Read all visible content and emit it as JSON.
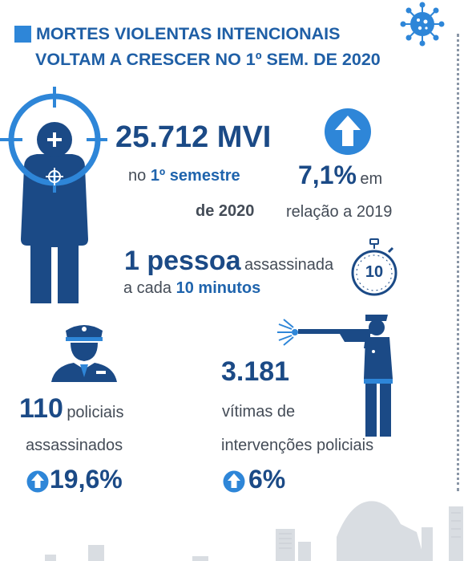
{
  "header": {
    "line1": "MORTES VIOLENTAS INTENCIONAIS",
    "line2": "VOLTAM A CRESCER NO 1º SEM. DE 2020"
  },
  "mvi": {
    "total": "25.712 MVI",
    "period_prefix": "no",
    "period_bold": "1º semestre",
    "period_year": "de 2020"
  },
  "change": {
    "value": "7,1%",
    "suffix": "em",
    "ref": "relação a 2019"
  },
  "frequency": {
    "big": "1 pessoa",
    "word": "assassinada",
    "line2_prefix": "a cada",
    "line2_bold": "10 minutos",
    "timer_label": "10"
  },
  "police": {
    "count": "110",
    "label1": "policiais",
    "label2": "assassinados",
    "change": "19,6%"
  },
  "interventions": {
    "count": "3.181",
    "label1": "vítimas de",
    "label2": "intervenções policiais",
    "change": "6%"
  },
  "colors": {
    "dark_blue": "#1b4a86",
    "accent_blue": "#2e86d8",
    "text_gray": "#444c57"
  }
}
